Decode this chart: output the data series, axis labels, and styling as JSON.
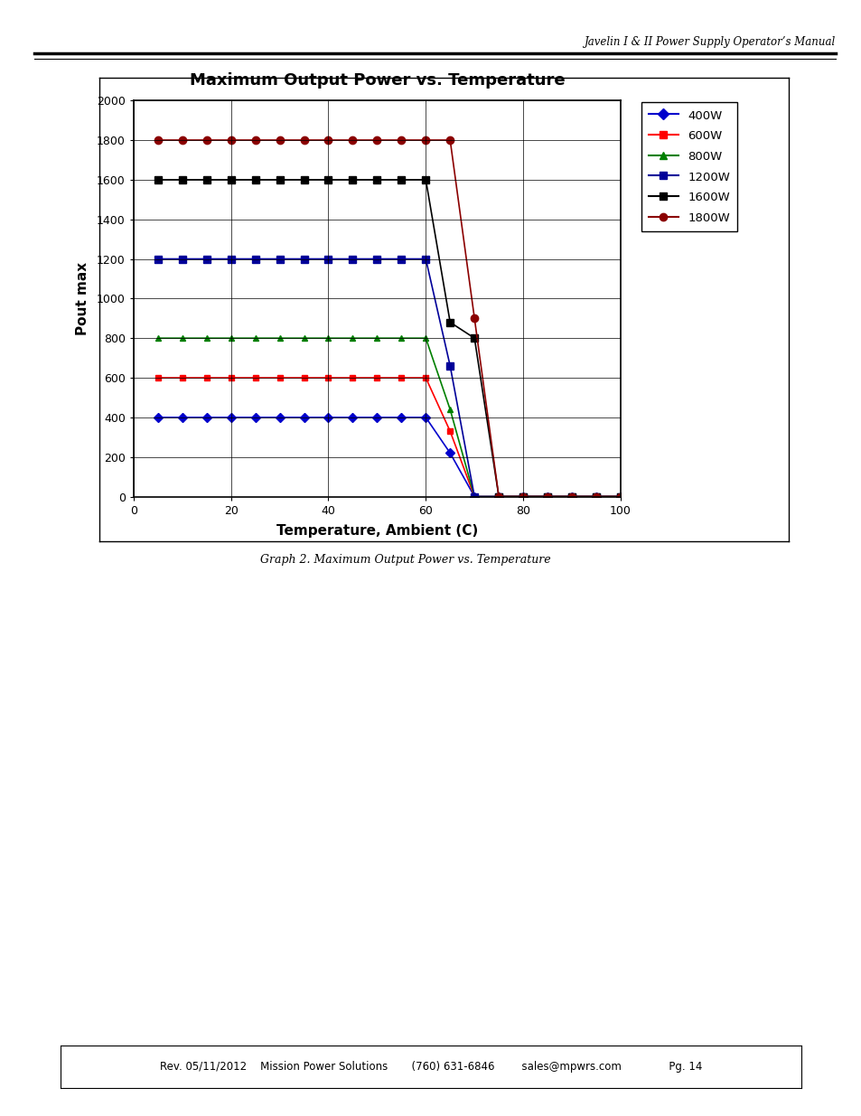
{
  "title": "Maximum Output Power vs. Temperature",
  "xlabel": "Temperature, Ambient (C)",
  "ylabel": "Pout max",
  "caption": "Graph 2. Maximum Output Power vs. Temperature",
  "header": "Javelin I & II Power Supply Operator’s Manual",
  "footer": "Rev. 05/11/2012    Mission Power Solutions       (760) 631-6846        sales@mpwrs.com              Pg. 14",
  "xlim": [
    0,
    100
  ],
  "ylim": [
    0,
    2000
  ],
  "xticks": [
    0,
    20,
    40,
    60,
    80,
    100
  ],
  "yticks": [
    0,
    200,
    400,
    600,
    800,
    1000,
    1200,
    1400,
    1600,
    1800,
    2000
  ],
  "series": [
    {
      "label": "400W",
      "color": "#0000CC",
      "marker": "D",
      "markersize": 5,
      "linewidth": 1.2,
      "x": [
        5,
        10,
        15,
        20,
        25,
        30,
        35,
        40,
        45,
        50,
        55,
        60,
        65,
        70,
        75,
        80,
        85,
        90,
        95,
        100
      ],
      "y": [
        400,
        400,
        400,
        400,
        400,
        400,
        400,
        400,
        400,
        400,
        400,
        400,
        220,
        0,
        0,
        0,
        0,
        0,
        0,
        0
      ]
    },
    {
      "label": "600W",
      "color": "#FF0000",
      "marker": "s",
      "markersize": 5,
      "linewidth": 1.2,
      "x": [
        5,
        10,
        15,
        20,
        25,
        30,
        35,
        40,
        45,
        50,
        55,
        60,
        65,
        70,
        75,
        80,
        85,
        90,
        95,
        100
      ],
      "y": [
        600,
        600,
        600,
        600,
        600,
        600,
        600,
        600,
        600,
        600,
        600,
        600,
        330,
        0,
        0,
        0,
        0,
        0,
        0,
        0
      ]
    },
    {
      "label": "800W",
      "color": "#008000",
      "marker": "^",
      "markersize": 5,
      "linewidth": 1.2,
      "x": [
        5,
        10,
        15,
        20,
        25,
        30,
        35,
        40,
        45,
        50,
        55,
        60,
        65,
        70,
        75,
        80,
        85,
        90,
        95,
        100
      ],
      "y": [
        800,
        800,
        800,
        800,
        800,
        800,
        800,
        800,
        800,
        800,
        800,
        800,
        440,
        0,
        0,
        0,
        0,
        0,
        0,
        0
      ]
    },
    {
      "label": "1200W",
      "color": "#000099",
      "marker": "s",
      "markersize": 6,
      "linewidth": 1.2,
      "x": [
        5,
        10,
        15,
        20,
        25,
        30,
        35,
        40,
        45,
        50,
        55,
        60,
        65,
        70,
        75,
        80,
        85,
        90,
        95,
        100
      ],
      "y": [
        1200,
        1200,
        1200,
        1200,
        1200,
        1200,
        1200,
        1200,
        1200,
        1200,
        1200,
        1200,
        660,
        0,
        0,
        0,
        0,
        0,
        0,
        0
      ]
    },
    {
      "label": "1600W",
      "color": "#000000",
      "marker": "s",
      "markersize": 6,
      "linewidth": 1.2,
      "x": [
        5,
        10,
        15,
        20,
        25,
        30,
        35,
        40,
        45,
        50,
        55,
        60,
        65,
        70,
        75,
        80,
        85,
        90,
        95,
        100
      ],
      "y": [
        1600,
        1600,
        1600,
        1600,
        1600,
        1600,
        1600,
        1600,
        1600,
        1600,
        1600,
        1600,
        880,
        800,
        0,
        0,
        0,
        0,
        0,
        0
      ]
    },
    {
      "label": "1800W",
      "color": "#8B0000",
      "marker": "o",
      "markersize": 6,
      "linewidth": 1.2,
      "x": [
        5,
        10,
        15,
        20,
        25,
        30,
        35,
        40,
        45,
        50,
        55,
        60,
        65,
        70,
        75,
        80,
        85,
        90,
        95,
        100
      ],
      "y": [
        1800,
        1800,
        1800,
        1800,
        1800,
        1800,
        1800,
        1800,
        1800,
        1800,
        1800,
        1800,
        1800,
        900,
        0,
        0,
        0,
        0,
        0,
        0
      ]
    }
  ],
  "legend_colors": [
    "#0000CC",
    "#FF0000",
    "#008000",
    "#000099",
    "#000000",
    "#8B0000"
  ],
  "legend_markers": [
    "D",
    "s",
    "^",
    "s",
    "s",
    "o"
  ],
  "legend_labels": [
    "400W",
    "600W",
    "800W",
    "1200W",
    "1600W",
    "1800W"
  ],
  "background_color": "#FFFFFF",
  "plot_bg": "#FFFFFF"
}
